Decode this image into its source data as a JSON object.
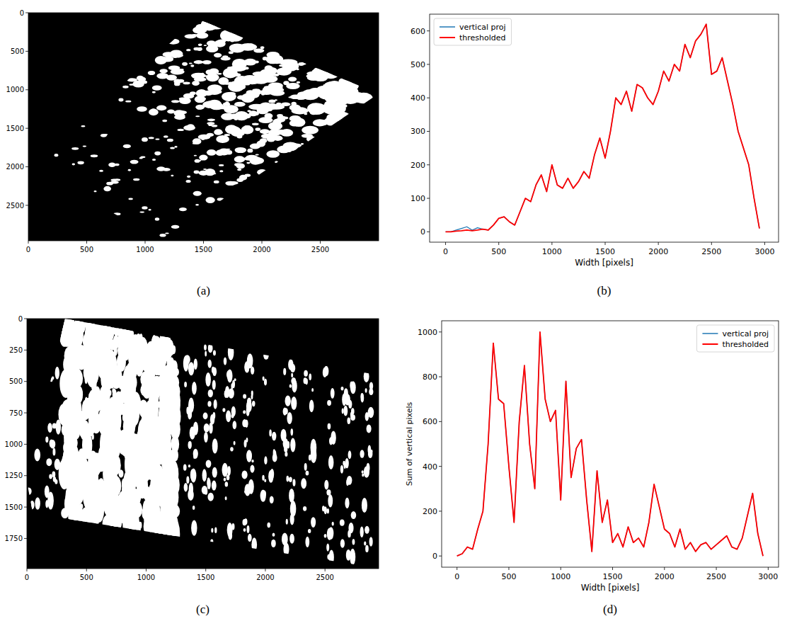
{
  "chart_data": [
    {
      "type": "image",
      "caption": "(a)",
      "xlim": [
        0,
        3000
      ],
      "ylim": [
        2960,
        0
      ],
      "xticks": [
        0,
        500,
        1000,
        1500,
        2000,
        2500
      ],
      "yticks": [
        0,
        500,
        1000,
        1500,
        2000,
        2500
      ]
    },
    {
      "type": "line",
      "caption": "(b)",
      "xlabel": "Width [pixels]",
      "legend": "upper left",
      "xlim": [
        -150,
        3130
      ],
      "ylim": [
        -31,
        650
      ],
      "xticks": [
        0,
        500,
        1000,
        1500,
        2000,
        2500,
        3000
      ],
      "yticks": [
        0,
        100,
        200,
        300,
        400,
        500,
        600
      ],
      "x": [
        0,
        50,
        100,
        150,
        200,
        250,
        300,
        350,
        400,
        450,
        500,
        550,
        600,
        650,
        700,
        750,
        800,
        850,
        900,
        950,
        1000,
        1050,
        1100,
        1150,
        1200,
        1250,
        1300,
        1350,
        1400,
        1450,
        1500,
        1550,
        1600,
        1650,
        1700,
        1750,
        1800,
        1850,
        1900,
        1950,
        2000,
        2050,
        2100,
        2150,
        2200,
        2250,
        2300,
        2350,
        2400,
        2450,
        2500,
        2550,
        2600,
        2650,
        2700,
        2750,
        2800,
        2850,
        2900,
        2950
      ],
      "series": [
        {
          "name": "vertical proj",
          "color": "#1f77b4",
          "values": [
            0,
            0,
            5,
            10,
            15,
            5,
            12,
            8,
            5,
            20,
            40,
            45,
            30,
            20,
            60,
            100,
            90,
            140,
            170,
            120,
            200,
            140,
            130,
            160,
            130,
            150,
            180,
            160,
            230,
            280,
            220,
            300,
            400,
            380,
            420,
            360,
            440,
            430,
            400,
            380,
            420,
            480,
            450,
            500,
            480,
            560,
            520,
            570,
            590,
            620,
            470,
            480,
            520,
            450,
            380,
            300,
            250,
            200,
            100,
            10
          ]
        },
        {
          "name": "thresholded",
          "color": "#ff0000",
          "values": [
            0,
            0,
            2,
            3,
            5,
            3,
            5,
            8,
            5,
            20,
            40,
            45,
            30,
            20,
            60,
            100,
            90,
            140,
            170,
            120,
            200,
            140,
            130,
            160,
            130,
            150,
            180,
            160,
            230,
            280,
            220,
            300,
            400,
            380,
            420,
            360,
            440,
            430,
            400,
            380,
            420,
            480,
            450,
            500,
            480,
            560,
            520,
            570,
            590,
            620,
            470,
            480,
            520,
            450,
            380,
            300,
            250,
            200,
            100,
            10
          ]
        }
      ]
    },
    {
      "type": "image",
      "caption": "(c)",
      "xlim": [
        0,
        2950
      ],
      "ylim": [
        1990,
        0
      ],
      "xticks": [
        0,
        500,
        1000,
        1500,
        2000,
        2500
      ],
      "yticks": [
        0,
        250,
        500,
        750,
        1000,
        1250,
        1500,
        1750
      ]
    },
    {
      "type": "line",
      "caption": "(d)",
      "xlabel": "Width [pixels]",
      "ylabel": "Sum of vertical pixels",
      "legend": "upper right",
      "xlim": [
        -148,
        3100
      ],
      "ylim": [
        -50,
        1050
      ],
      "xticks": [
        0,
        500,
        1000,
        1500,
        2000,
        2500,
        3000
      ],
      "yticks": [
        0,
        200,
        400,
        600,
        800,
        1000
      ],
      "x": [
        0,
        50,
        100,
        150,
        200,
        250,
        300,
        350,
        400,
        450,
        500,
        550,
        600,
        650,
        700,
        750,
        800,
        850,
        900,
        950,
        1000,
        1050,
        1100,
        1150,
        1200,
        1250,
        1300,
        1350,
        1400,
        1450,
        1500,
        1550,
        1600,
        1650,
        1700,
        1750,
        1800,
        1850,
        1900,
        1950,
        2000,
        2050,
        2100,
        2150,
        2200,
        2250,
        2300,
        2350,
        2400,
        2450,
        2500,
        2550,
        2600,
        2650,
        2700,
        2750,
        2800,
        2850,
        2900,
        2950
      ],
      "series": [
        {
          "name": "vertical proj",
          "color": "#1f77b4",
          "values": [
            0,
            10,
            40,
            30,
            120,
            200,
            500,
            950,
            700,
            680,
            400,
            150,
            600,
            850,
            500,
            300,
            1000,
            700,
            600,
            650,
            250,
            780,
            350,
            480,
            520,
            250,
            20,
            380,
            150,
            250,
            60,
            100,
            40,
            130,
            60,
            80,
            40,
            150,
            320,
            220,
            120,
            100,
            40,
            120,
            30,
            60,
            20,
            50,
            60,
            30,
            50,
            70,
            90,
            40,
            30,
            80,
            180,
            280,
            100,
            0
          ]
        },
        {
          "name": "thresholded",
          "color": "#ff0000",
          "values": [
            0,
            10,
            40,
            30,
            120,
            200,
            500,
            950,
            700,
            680,
            400,
            150,
            600,
            850,
            500,
            300,
            1000,
            700,
            600,
            650,
            250,
            780,
            350,
            480,
            520,
            250,
            20,
            380,
            150,
            250,
            60,
            100,
            40,
            130,
            60,
            80,
            40,
            150,
            320,
            220,
            120,
            100,
            40,
            120,
            30,
            60,
            20,
            50,
            60,
            30,
            50,
            70,
            90,
            40,
            30,
            80,
            180,
            280,
            100,
            0
          ]
        }
      ]
    }
  ]
}
